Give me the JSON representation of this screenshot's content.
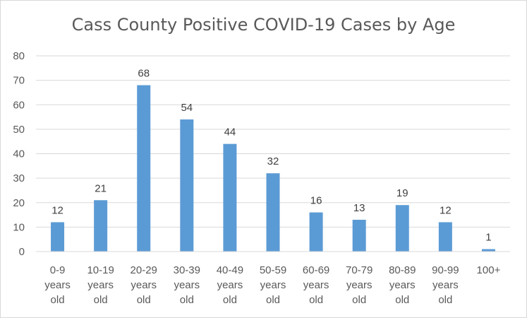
{
  "chart_data": {
    "type": "bar",
    "title": "Cass County Positive COVID-19 Cases by Age",
    "xlabel": "",
    "ylabel": "",
    "ylim": [
      0,
      80
    ],
    "yticks": [
      0,
      10,
      20,
      30,
      40,
      50,
      60,
      70,
      80
    ],
    "categories": [
      [
        "0-9",
        "years",
        "old"
      ],
      [
        "10-19",
        "years",
        "old"
      ],
      [
        "20-29",
        "years",
        "old"
      ],
      [
        "30-39",
        "years",
        "old"
      ],
      [
        "40-49",
        "years",
        "old"
      ],
      [
        "50-59",
        "years",
        "old"
      ],
      [
        "60-69",
        "years",
        "old"
      ],
      [
        "70-79",
        "years",
        "old"
      ],
      [
        "80-89",
        "years",
        "old"
      ],
      [
        "90-99",
        "years",
        "old"
      ],
      [
        "100+"
      ]
    ],
    "values": [
      12,
      21,
      68,
      54,
      44,
      32,
      16,
      13,
      19,
      12,
      1
    ],
    "grid": true,
    "legend": "none",
    "bar_color": "#5b9bd5",
    "grid_color": "#d9d9d9",
    "text_color": "#595959"
  }
}
